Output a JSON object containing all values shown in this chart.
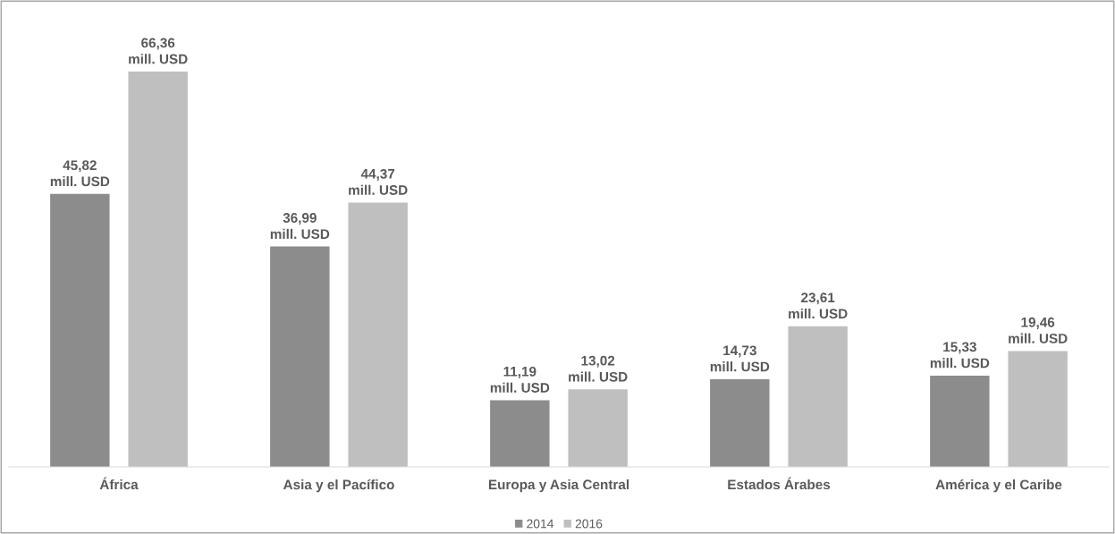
{
  "chart_data": {
    "type": "bar",
    "categories": [
      "África",
      "Asia y el Pacífico",
      "Europa y Asia Central",
      "Estados Árabes",
      "América y el Caribe"
    ],
    "series": [
      {
        "name": "2014",
        "color": "#8c8c8c",
        "values": [
          45.82,
          36.99,
          11.19,
          14.73,
          15.33
        ],
        "value_labels": [
          "45,82\nmill. USD",
          "36,99\nmill. USD",
          "11,19\nmill. USD",
          "14,73\nmill. USD",
          "15,33\nmill. USD"
        ]
      },
      {
        "name": "2016",
        "color": "#bfbfbf",
        "values": [
          66.36,
          44.37,
          13.02,
          23.61,
          19.46
        ],
        "value_labels": [
          "66,36\nmill. USD",
          "44,37\nmill. USD",
          "13,02\nmill. USD",
          "23,61\nmill. USD",
          "19,46\nmill. USD"
        ]
      }
    ],
    "legend": "bottom",
    "grid": false
  }
}
